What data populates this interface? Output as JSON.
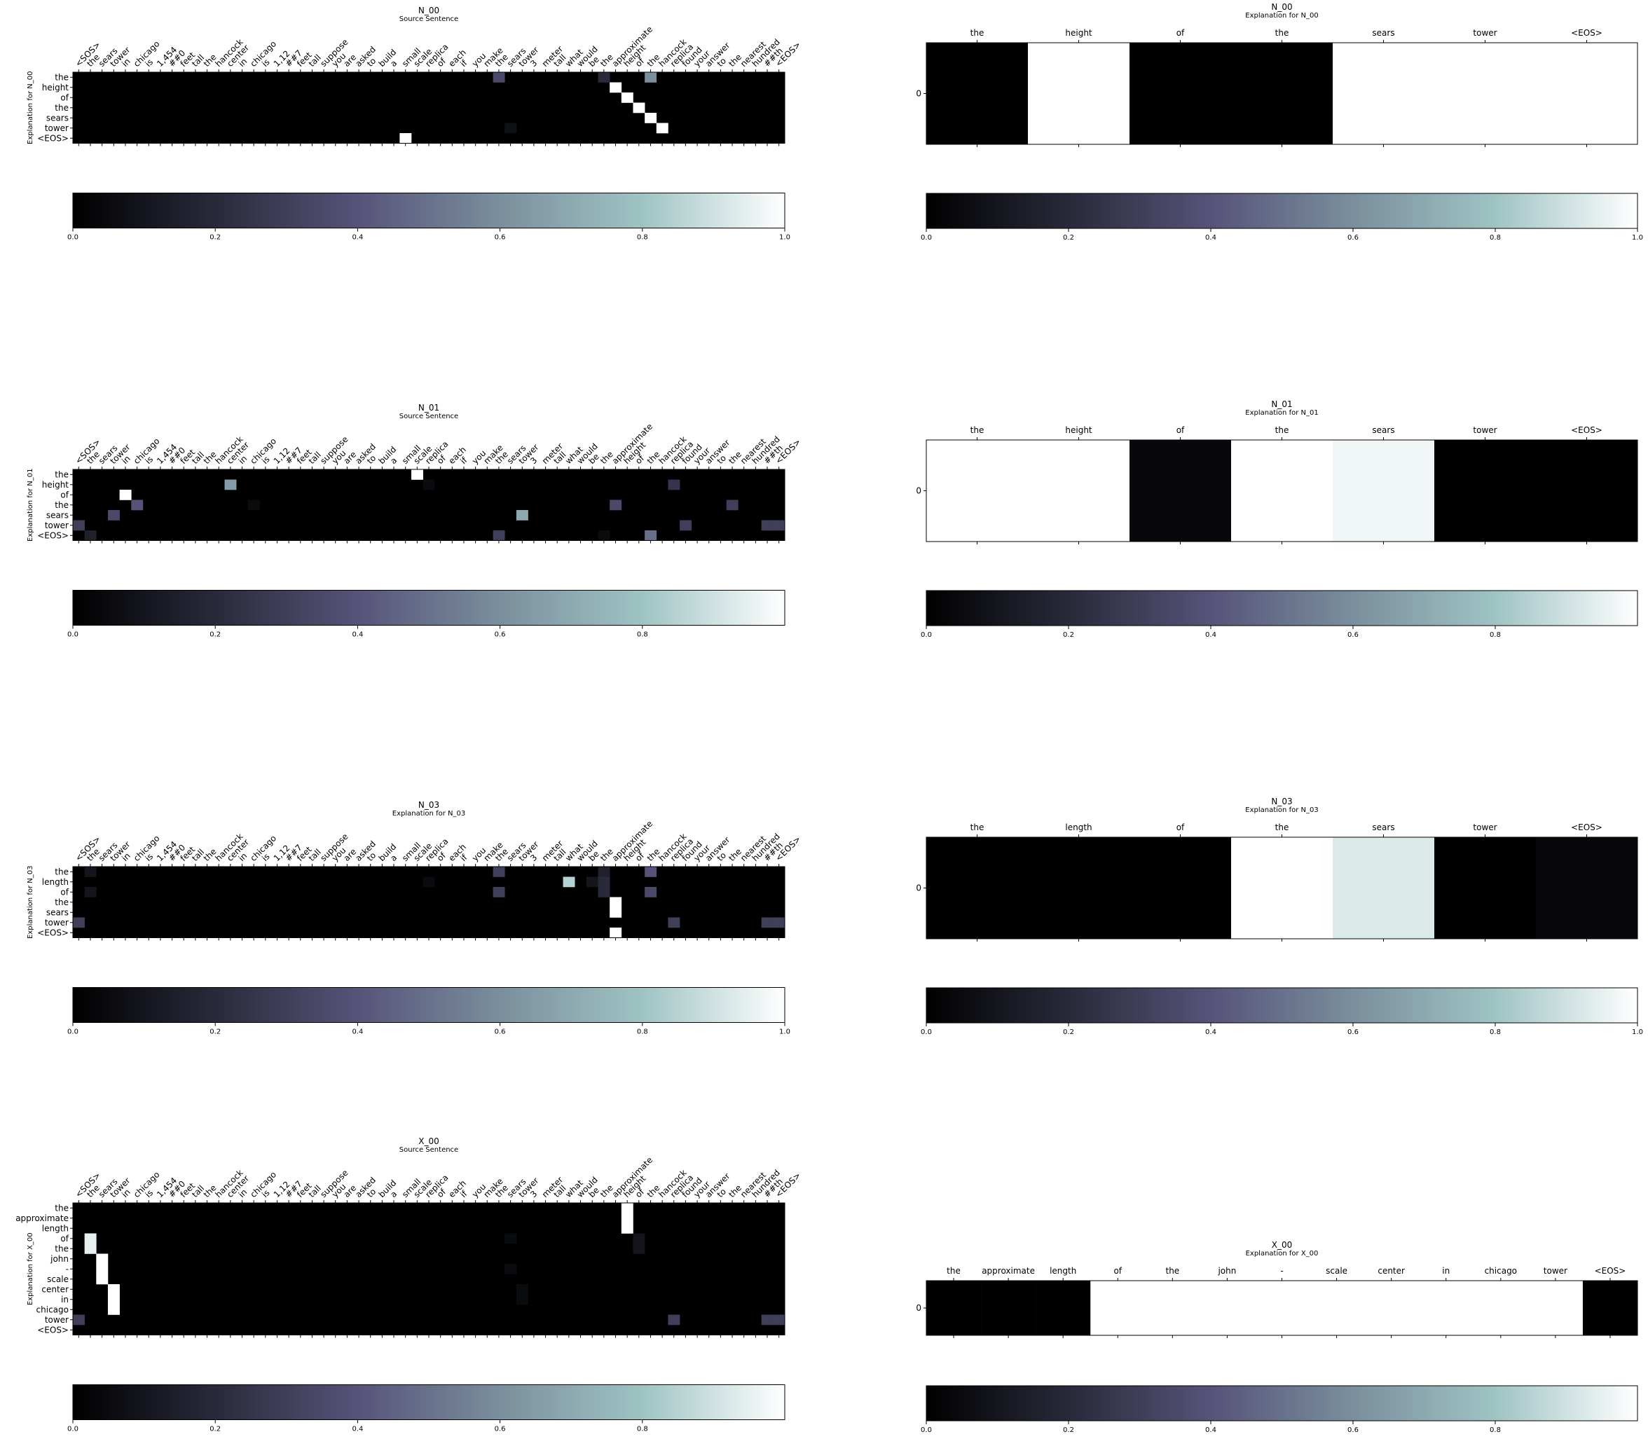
{
  "colormap": [
    "#000000",
    "#282a3a",
    "#565379",
    "#7a8f9d",
    "#9fc3c3",
    "#ffffff"
  ],
  "source_tokens": [
    "<SOS>",
    "the",
    "sears",
    "tower",
    "in",
    "chicago",
    "is",
    "1,454",
    "##0",
    "feet",
    "tall",
    "the",
    "hancock",
    "center",
    "in",
    "chicago",
    "is",
    "1,12",
    "##7",
    "feet",
    "tall",
    "suppose",
    "you",
    "are",
    "asked",
    "to",
    "build",
    "a",
    "small",
    "scale",
    "replica",
    "of",
    "each",
    "if",
    "you",
    "make",
    "the",
    "sears",
    "tower",
    "3",
    "meter",
    "tall",
    "what",
    "would",
    "be",
    "the",
    "approximate",
    "height",
    "of",
    "the",
    "hancock",
    "replica",
    "found",
    "your",
    "answer",
    "to",
    "the",
    "nearest",
    "hundred",
    "##th",
    "<EOS>"
  ],
  "chart_data": [
    {
      "type": "heatmap",
      "title": "N_00",
      "subtitle": "Source Sentence",
      "ylabel": "Explanation for N_00",
      "rows": [
        "the",
        "height",
        "of",
        "the",
        "sears",
        "tower",
        "<EOS>"
      ],
      "cells": [
        [
          0,
          36,
          0.35
        ],
        [
          0,
          45,
          0.2
        ],
        [
          0,
          49,
          0.6
        ],
        [
          1,
          46,
          1.0
        ],
        [
          2,
          47,
          1.0
        ],
        [
          3,
          48,
          1.0
        ],
        [
          4,
          49,
          1.0
        ],
        [
          5,
          50,
          1.0
        ],
        [
          5,
          37,
          0.08
        ],
        [
          6,
          28,
          1.0
        ]
      ],
      "colorbar": {
        "min": 0.0,
        "max": 1.0,
        "ticks": [
          "0.0",
          "0.2",
          "0.4",
          "0.6",
          "0.8",
          "1.0"
        ]
      }
    },
    {
      "type": "heatmap",
      "title": "N_00",
      "subtitle": "Explanation for N_00",
      "ylabel": "",
      "y_ticks": [
        "0"
      ],
      "columns": [
        "the",
        "height",
        "of",
        "the",
        "sears",
        "tower",
        "<EOS>"
      ],
      "values": [
        0.0,
        1.0,
        0.0,
        0.0,
        1.0,
        1.0,
        1.0
      ],
      "colorbar": {
        "min": 0.0,
        "max": 1.0,
        "ticks": [
          "0.0",
          "0.2",
          "0.4",
          "0.6",
          "0.8",
          "1.0"
        ]
      }
    },
    {
      "type": "heatmap",
      "title": "N_01",
      "subtitle": "Source Sentence",
      "ylabel": "Explanation for N_01",
      "rows": [
        "the",
        "height",
        "of",
        "the",
        "sears",
        "tower",
        "<EOS>"
      ],
      "cells": [
        [
          0,
          29,
          1.0
        ],
        [
          1,
          13,
          0.65
        ],
        [
          1,
          30,
          0.05
        ],
        [
          1,
          51,
          0.25
        ],
        [
          2,
          4,
          1.0
        ],
        [
          3,
          5,
          0.4
        ],
        [
          3,
          15,
          0.05
        ],
        [
          3,
          46,
          0.35
        ],
        [
          3,
          56,
          0.3
        ],
        [
          4,
          3,
          0.35
        ],
        [
          4,
          38,
          0.7
        ],
        [
          5,
          0,
          0.3
        ],
        [
          5,
          52,
          0.3
        ],
        [
          5,
          59,
          0.3
        ],
        [
          5,
          60,
          0.3
        ],
        [
          6,
          1,
          0.15
        ],
        [
          6,
          36,
          0.3
        ],
        [
          6,
          45,
          0.05
        ],
        [
          6,
          49,
          0.5
        ]
      ],
      "colorbar": {
        "min": 0.0,
        "max": 1.0,
        "ticks": [
          "0.0",
          "0.2",
          "0.4",
          "0.6",
          "0.8"
        ]
      }
    },
    {
      "type": "heatmap",
      "title": "N_01",
      "subtitle": "Explanation for N_01",
      "ylabel": "",
      "y_ticks": [
        "0"
      ],
      "columns": [
        "the",
        "height",
        "of",
        "the",
        "sears",
        "tower",
        "<EOS>"
      ],
      "values": [
        1.0,
        1.0,
        0.04,
        1.0,
        0.97,
        0.0,
        0.0
      ],
      "colorbar": {
        "min": 0.0,
        "max": 1.0,
        "ticks": [
          "0.0",
          "0.2",
          "0.4",
          "0.6",
          "0.8"
        ]
      }
    },
    {
      "type": "heatmap",
      "title": "N_03",
      "subtitle": "Explanation for N_03",
      "ylabel": "Explanation for N_03",
      "rows": [
        "the",
        "length",
        "of",
        "the",
        "sears",
        "tower",
        "<EOS>"
      ],
      "cells": [
        [
          0,
          1,
          0.1
        ],
        [
          0,
          36,
          0.3
        ],
        [
          0,
          45,
          0.15
        ],
        [
          0,
          49,
          0.4
        ],
        [
          1,
          42,
          0.85
        ],
        [
          1,
          44,
          0.1
        ],
        [
          1,
          45,
          0.2
        ],
        [
          1,
          30,
          0.05
        ],
        [
          2,
          1,
          0.1
        ],
        [
          2,
          36,
          0.3
        ],
        [
          2,
          45,
          0.2
        ],
        [
          2,
          49,
          0.35
        ],
        [
          3,
          46,
          1.0
        ],
        [
          4,
          46,
          1.0
        ],
        [
          5,
          0,
          0.3
        ],
        [
          5,
          51,
          0.3
        ],
        [
          5,
          59,
          0.3
        ],
        [
          5,
          60,
          0.3
        ],
        [
          6,
          46,
          1.0
        ]
      ],
      "colorbar": {
        "min": 0.0,
        "max": 1.0,
        "ticks": [
          "0.0",
          "0.2",
          "0.4",
          "0.6",
          "0.8",
          "1.0"
        ]
      }
    },
    {
      "type": "heatmap",
      "title": "N_03",
      "subtitle": "Explanation for N_03",
      "ylabel": "",
      "y_ticks": [
        "0"
      ],
      "columns": [
        "the",
        "length",
        "of",
        "the",
        "sears",
        "tower",
        "<EOS>"
      ],
      "values": [
        0.0,
        0.0,
        0.0,
        1.0,
        0.93,
        0.0,
        0.04
      ],
      "colorbar": {
        "min": 0.0,
        "max": 1.0,
        "ticks": [
          "0.0",
          "0.2",
          "0.4",
          "0.6",
          "0.8",
          "1.0"
        ]
      }
    },
    {
      "type": "heatmap",
      "title": "X_00",
      "subtitle": "Source Sentence",
      "ylabel": "Explanation for X_00",
      "rows": [
        "the",
        "approximate",
        "length",
        "of",
        "the",
        "john",
        "-",
        "scale",
        "center",
        "in",
        "chicago",
        "tower",
        "<EOS>"
      ],
      "cells": [
        [
          0,
          47,
          1.0
        ],
        [
          1,
          47,
          1.0
        ],
        [
          2,
          47,
          1.0
        ],
        [
          3,
          1,
          0.95
        ],
        [
          3,
          37,
          0.05
        ],
        [
          3,
          48,
          0.1
        ],
        [
          4,
          1,
          0.95
        ],
        [
          4,
          48,
          0.1
        ],
        [
          5,
          2,
          1.0
        ],
        [
          6,
          2,
          1.0
        ],
        [
          6,
          37,
          0.05
        ],
        [
          7,
          2,
          1.0
        ],
        [
          8,
          3,
          1.0
        ],
        [
          8,
          38,
          0.05
        ],
        [
          9,
          3,
          1.0
        ],
        [
          9,
          38,
          0.05
        ],
        [
          10,
          3,
          1.0
        ],
        [
          11,
          0,
          0.3
        ],
        [
          11,
          51,
          0.3
        ],
        [
          11,
          59,
          0.3
        ],
        [
          11,
          60,
          0.3
        ]
      ],
      "colorbar": {
        "min": 0.0,
        "max": 1.0,
        "ticks": [
          "0.0",
          "0.2",
          "0.4",
          "0.6",
          "0.8"
        ]
      }
    },
    {
      "type": "heatmap",
      "title": "X_00",
      "subtitle": "Explanation for X_00",
      "ylabel": "",
      "y_ticks": [
        "0"
      ],
      "columns": [
        "the",
        "approximate",
        "length",
        "of",
        "the",
        "john",
        "-",
        "scale",
        "center",
        "in",
        "chicago",
        "tower",
        "<EOS>"
      ],
      "values": [
        0.0,
        0.0,
        0.0,
        1.0,
        1.0,
        1.0,
        1.0,
        1.0,
        1.0,
        1.0,
        1.0,
        1.0,
        0.0
      ],
      "colorbar": {
        "min": 0.0,
        "max": 1.0,
        "ticks": [
          "0.0",
          "0.2",
          "0.4",
          "0.6",
          "0.8"
        ]
      }
    }
  ]
}
